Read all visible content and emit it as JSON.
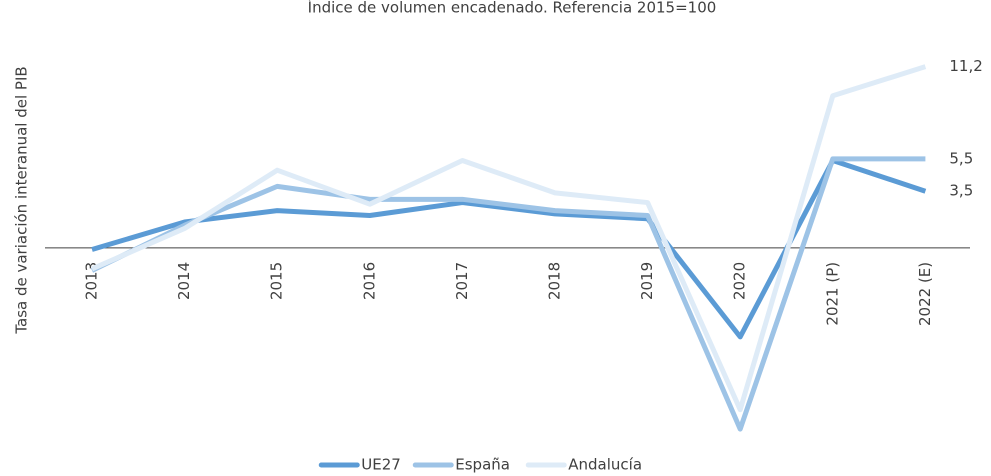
{
  "chart_data": {
    "type": "line",
    "title": "Índice de volumen encadenado. Referencia 2015=100",
    "y_label": "Tasa de variación interanual del PIB",
    "categories": [
      "2013",
      "2014",
      "2015",
      "2016",
      "2017",
      "2018",
      "2019",
      "2020",
      "2021 (P)",
      "2022 (E)"
    ],
    "ylim": [
      -12.8,
      14.7
    ],
    "legend": "bottom",
    "series": [
      {
        "name": "UE27",
        "color": "#5b9bd5",
        "values": [
          -0.1,
          1.6,
          2.3,
          2.0,
          2.8,
          2.1,
          1.8,
          -5.5,
          5.4,
          3.5
        ],
        "value_labels": [
          null,
          null,
          null,
          null,
          null,
          null,
          null,
          null,
          null,
          "3,5"
        ]
      },
      {
        "name": "España",
        "color": "#9dc3e6",
        "values": [
          -1.4,
          1.4,
          3.8,
          3.0,
          3.0,
          2.3,
          2.0,
          -11.2,
          5.5,
          5.5
        ],
        "value_labels": [
          null,
          null,
          null,
          null,
          null,
          null,
          null,
          null,
          null,
          "5,5"
        ]
      },
      {
        "name": "Andalucía",
        "color": "#deebf7",
        "values": [
          -1.3,
          1.2,
          4.8,
          2.7,
          5.4,
          3.4,
          2.8,
          -10.0,
          9.4,
          11.2
        ],
        "value_labels": [
          null,
          null,
          null,
          null,
          null,
          null,
          null,
          null,
          null,
          "11,2"
        ]
      }
    ]
  }
}
